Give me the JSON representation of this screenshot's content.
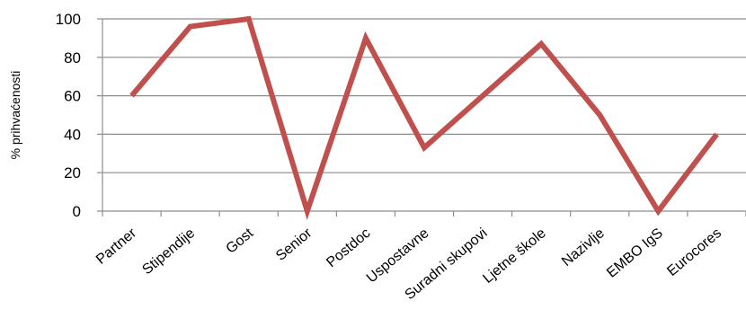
{
  "chart_data": {
    "type": "line",
    "title": "",
    "xlabel": "",
    "ylabel": "% prihvaćenosti",
    "ylim": [
      0,
      100
    ],
    "yticks": [
      0,
      20,
      40,
      60,
      80,
      100
    ],
    "grid": true,
    "legend": "none",
    "categories": [
      "Partner",
      "Stipendije",
      "Gost",
      "Senior",
      "Postdoc",
      "Uspostavne",
      "Suradni skupovi",
      "Ljetne škole",
      "Nazivlje",
      "EMBO IgS",
      "Eurocores"
    ],
    "series": [
      {
        "values": [
          60,
          96,
          100,
          0,
          90,
          33,
          60,
          87,
          50,
          0,
          40
        ],
        "color": "#c0504d"
      }
    ]
  }
}
